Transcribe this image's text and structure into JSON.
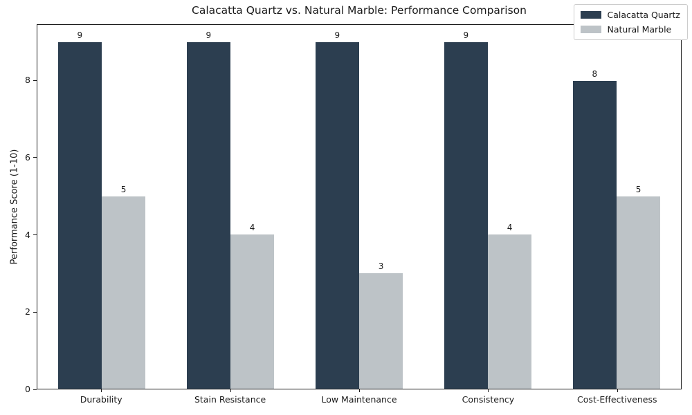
{
  "chart_data": {
    "type": "bar",
    "title": "Calacatta Quartz vs. Natural Marble: Performance Comparison",
    "xlabel": "",
    "ylabel": "Performance Score (1-10)",
    "categories": [
      "Durability",
      "Stain Resistance",
      "Low Maintenance",
      "Consistency",
      "Cost-Effectiveness"
    ],
    "series": [
      {
        "name": "Calacatta Quartz",
        "color": "#2c3e50",
        "values": [
          9,
          9,
          9,
          9,
          8
        ]
      },
      {
        "name": "Natural Marble",
        "color": "#bdc3c7",
        "values": [
          5,
          4,
          3,
          4,
          5
        ]
      }
    ],
    "ylim": [
      0,
      9.45
    ],
    "yticks": [
      0,
      2,
      4,
      6,
      8
    ],
    "bar_value_labels": true,
    "legend_position": "upper right",
    "grid": false,
    "background_color": "#ffffff",
    "spine_color": "#1a1a1a"
  }
}
